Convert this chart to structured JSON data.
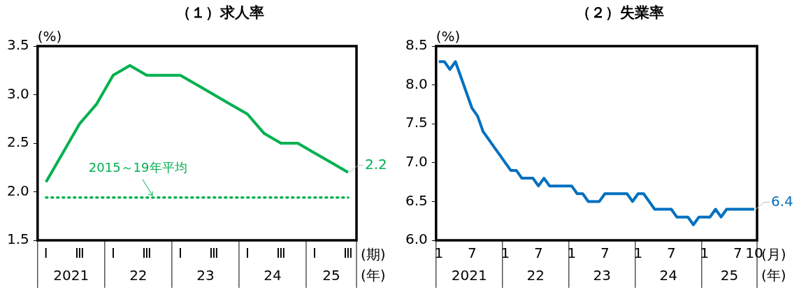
{
  "chart_data": [
    {
      "type": "line",
      "title": "（１）求人率",
      "ylabel": "(%)",
      "xlabel": "(期)\n(年)",
      "categories": [
        "Ⅰ",
        null,
        "Ⅲ",
        null,
        "Ⅰ",
        null,
        "Ⅲ",
        null,
        "Ⅰ",
        null,
        "Ⅲ",
        null,
        "Ⅰ",
        null,
        "Ⅲ",
        null,
        "Ⅰ",
        null,
        "Ⅲ"
      ],
      "series": [
        {
          "color": "#00b050",
          "values": [
            2.1,
            2.4,
            2.7,
            2.9,
            3.2,
            3.3,
            3.2,
            3.2,
            3.2,
            3.1,
            3.0,
            2.9,
            2.8,
            2.6,
            2.5,
            2.5,
            2.4,
            2.3,
            2.2
          ]
        }
      ],
      "ylim": [
        1.5,
        3.5
      ],
      "yticks": [
        1.5,
        {
          "value": 2,
          "label": "2.0"
        },
        2.5,
        {
          "value": 3,
          "label": "3.0"
        },
        3.5
      ],
      "grid": false,
      "legend": false,
      "marker": "none",
      "line_style": "solid",
      "ref_lines": [
        {
          "axis": "y",
          "value": 1.94,
          "label": "2015～19年平均",
          "color": "#00b050",
          "line_style": "dotted"
        }
      ],
      "annotations": [
        "2021",
        "22",
        "23",
        "24",
        "25",
        "2.2"
      ]
    },
    {
      "type": "line",
      "title": "（２）失業率",
      "ylabel": "(%)",
      "xlabel": "(月)\n(年)",
      "categories": [
        "1",
        null,
        null,
        null,
        null,
        null,
        "7",
        null,
        null,
        null,
        null,
        null,
        "1",
        null,
        null,
        null,
        null,
        null,
        "7",
        null,
        null,
        null,
        null,
        null,
        "1",
        null,
        null,
        null,
        null,
        null,
        "7",
        null,
        null,
        null,
        null,
        null,
        "1",
        null,
        null,
        null,
        null,
        null,
        "7",
        null,
        null,
        null,
        null,
        null,
        "1",
        null,
        null,
        null,
        null,
        null,
        "7",
        null,
        null,
        "10"
      ],
      "series": [
        {
          "color": "#0070c0",
          "values": [
            8.3,
            8.3,
            8.2,
            8.3,
            8.1,
            7.9,
            7.7,
            7.6,
            7.4,
            7.3,
            7.2,
            7.1,
            7.0,
            6.9,
            6.9,
            6.8,
            6.8,
            6.8,
            6.7,
            6.8,
            6.7,
            6.7,
            6.7,
            6.7,
            6.7,
            6.6,
            6.6,
            6.5,
            6.5,
            6.5,
            6.6,
            6.6,
            6.6,
            6.6,
            6.6,
            6.5,
            6.6,
            6.6,
            6.5,
            6.4,
            6.4,
            6.4,
            6.4,
            6.3,
            6.3,
            6.3,
            6.2,
            6.3,
            6.3,
            6.3,
            6.4,
            6.3,
            6.4,
            6.4,
            6.4,
            6.4,
            6.4,
            6.4
          ]
        }
      ],
      "ylim": [
        6.0,
        8.5
      ],
      "yticks": [
        {
          "value": 6,
          "label": "6.0"
        },
        6.5,
        {
          "value": 7,
          "label": "7.0"
        },
        7.5,
        {
          "value": 8,
          "label": "8.0"
        },
        8.5
      ],
      "grid": false,
      "legend": false,
      "marker": "none",
      "line_style": "solid",
      "annotations": [
        "2021",
        "22",
        "23",
        "24",
        "25",
        "6.4"
      ]
    }
  ]
}
